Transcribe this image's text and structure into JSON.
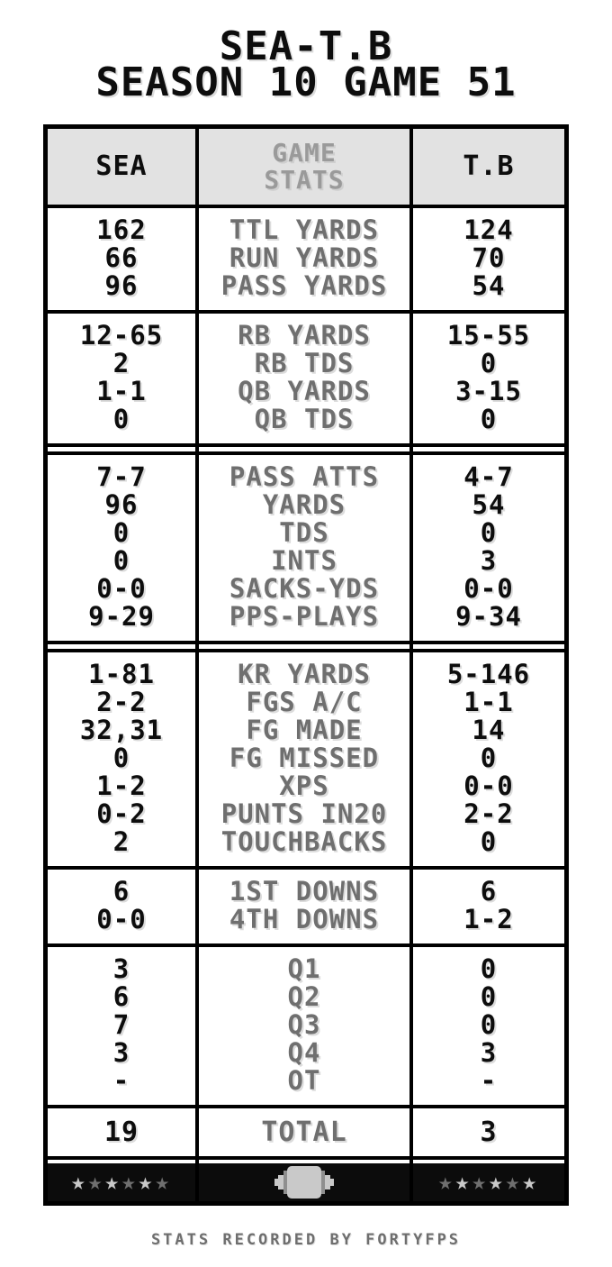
{
  "title": {
    "line1": "SEA-T.B",
    "line2": "SEASON 10 GAME 51"
  },
  "header": {
    "left_team": "SEA",
    "center_line1": "GAME",
    "center_line2": "STATS",
    "right_team": "T.B"
  },
  "sections": [
    {
      "divider_before": "single",
      "rows": [
        {
          "sea": "162",
          "label": "TTL YARDS",
          "tb": "124"
        },
        {
          "sea": "66",
          "label": "RUN YARDS",
          "tb": "70"
        },
        {
          "sea": "96",
          "label": "PASS YARDS",
          "tb": "54"
        }
      ]
    },
    {
      "divider_before": "single",
      "rows": [
        {
          "sea": "12-65",
          "label": "RB YARDS",
          "tb": "15-55"
        },
        {
          "sea": "2",
          "label": "RB TDS",
          "tb": "0"
        },
        {
          "sea": "1-1",
          "label": "QB YARDS",
          "tb": "3-15"
        },
        {
          "sea": "0",
          "label": "QB TDS",
          "tb": "0"
        }
      ]
    },
    {
      "divider_before": "double",
      "rows": [
        {
          "sea": "7-7",
          "label": "PASS ATTS",
          "tb": "4-7"
        },
        {
          "sea": "96",
          "label": "YARDS",
          "tb": "54"
        },
        {
          "sea": "0",
          "label": "TDS",
          "tb": "0"
        },
        {
          "sea": "0",
          "label": "INTS",
          "tb": "3"
        },
        {
          "sea": "0-0",
          "label": "SACKS-YDS",
          "tb": "0-0"
        },
        {
          "sea": "9-29",
          "label": "PPS-PLAYS",
          "tb": "9-34"
        }
      ]
    },
    {
      "divider_before": "double",
      "rows": [
        {
          "sea": "1-81",
          "label": "KR YARDS",
          "tb": "5-146"
        },
        {
          "sea": "2-2",
          "label": "FGS A/C",
          "tb": "1-1"
        },
        {
          "sea": "32,31",
          "label": "FG MADE",
          "tb": "14"
        },
        {
          "sea": "0",
          "label": "FG MISSED",
          "tb": "0"
        },
        {
          "sea": "1-2",
          "label": "XPS",
          "tb": "0-0"
        },
        {
          "sea": "0-2",
          "label": "PUNTS IN20",
          "tb": "2-2"
        },
        {
          "sea": "2",
          "label": "TOUCHBACKS",
          "tb": "0"
        }
      ]
    },
    {
      "divider_before": "single",
      "rows": [
        {
          "sea": "6",
          "label": "1ST DOWNS",
          "tb": "6"
        },
        {
          "sea": "0-0",
          "label": "4TH DOWNS",
          "tb": "1-2"
        }
      ]
    },
    {
      "divider_before": "single",
      "rows": [
        {
          "sea": "3",
          "label": "Q1",
          "tb": "0"
        },
        {
          "sea": "6",
          "label": "Q2",
          "tb": "0"
        },
        {
          "sea": "7",
          "label": "Q3",
          "tb": "0"
        },
        {
          "sea": "3",
          "label": "Q4",
          "tb": "3"
        },
        {
          "sea": "-",
          "label": "OT",
          "tb": "-"
        }
      ]
    }
  ],
  "total_row": {
    "sea": "19",
    "label": "TOTAL",
    "tb": "3"
  },
  "footer": {
    "left_stars": "★★★★★★",
    "right_stars": "★★★★★★"
  },
  "caption": "STATS RECORDED BY FORTYFPS",
  "colors": {
    "text_black": "#0d0d0d",
    "label_gray": "#6f6f6f",
    "header_label_gray": "#9a9a9a",
    "header_bg": "#e2e2e2",
    "bar_bg": "#0c0c0c",
    "star_light": "#c9c9c9",
    "star_dark": "#6f6f6f",
    "football_gray": "#c9c9c9"
  }
}
